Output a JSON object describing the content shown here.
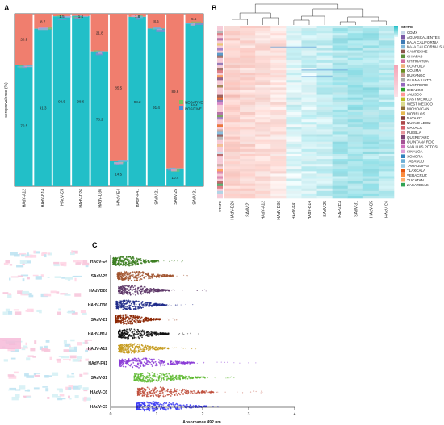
{
  "panels": {
    "a_letter": "A",
    "b_letter": "B",
    "c_letter": "C"
  },
  "colors": {
    "negative": "#f07e6e",
    "positive": "#22bfc8",
    "heat_high": "#f8c8c2",
    "heat_mid": "#ffffff",
    "heat_low": "#9fe3e8"
  },
  "chart_data": [
    {
      "type": "bar",
      "stacked": true,
      "title": "",
      "xlabel": "",
      "ylabel": "seroprevalence (%)",
      "ylim": [
        0,
        100
      ],
      "categories": [
        "HAdV-A12",
        "HAdV-B14",
        "HAdV-C5",
        "HAdV-D26",
        "HAdV-D36",
        "HAdV-E4",
        "HAdV-F41",
        "SAdV-21",
        "SAdV-25",
        "SAdV-31"
      ],
      "legend": {
        "placement": "right",
        "entries": [
          "NEGATIVE",
          "POSITIVE"
        ]
      },
      "series": [
        {
          "name": "NEGATIVE",
          "values": [
            29.5,
            8.7,
            1.5,
            1.4,
            21.8,
            85.5,
            1.8,
            8.6,
            89.6,
            5.6
          ]
        },
        {
          "name": "POSITIVE",
          "values": [
            70.5,
            91.3,
            98.5,
            98.6,
            78.2,
            14.5,
            98.2,
            91.4,
            10.4,
            94.4
          ]
        }
      ],
      "data_labels": [
        {
          "category": "HAdV-A12",
          "labels": [
            "29.5",
            "70.5"
          ]
        },
        {
          "category": "HAdV-B14",
          "labels": [
            "8.7",
            "91.3"
          ]
        },
        {
          "category": "HAdV-C5",
          "labels": [
            "1.5",
            "98.5"
          ]
        },
        {
          "category": "HAdV-D26",
          "labels": [
            "1.4",
            "98.6"
          ]
        },
        {
          "category": "HAdV-D36",
          "labels": [
            "21.8",
            "78.2"
          ]
        },
        {
          "category": "HAdV-E4",
          "labels": [
            "85.5",
            "14.5"
          ]
        },
        {
          "category": "HAdV-F41",
          "labels": [
            "1.8",
            "98.2"
          ]
        },
        {
          "category": "SAdV-21",
          "labels": [
            "8.6",
            "91.4"
          ]
        },
        {
          "category": "SAdV-25",
          "labels": [
            "89.6",
            "10.4"
          ]
        },
        {
          "category": "SAdV-31",
          "labels": [
            "5.6",
            "94.4"
          ]
        }
      ]
    },
    {
      "type": "heatmap",
      "title": "",
      "columns": [
        "HAdV-D26",
        "SAdV-21",
        "HAdV-A12",
        "HAdV-D36",
        "HAdV-F41",
        "HAdV-B14",
        "SAdV-25",
        "HAdV-E4",
        "SAdV-31",
        "HAdV-C5",
        "HAdV-C6"
      ],
      "column_values": [
        0.85,
        0.8,
        0.75,
        0.7,
        0.35,
        0.3,
        0.25,
        0.15,
        0.1,
        0.12,
        0.18
      ],
      "row_annotation_label": "STATE",
      "legend": {
        "title": "STATE",
        "placement": "right",
        "entries": [
          "CDMX",
          "AGUASCALIENTES",
          "BAJA CALIFORNIA",
          "BAJA CALIFORNIA SUR",
          "CAMPECHE",
          "CHIAPAS",
          "CHIHUAHUA",
          "COAHUILA",
          "COLIMA",
          "DURANGO",
          "GUANAJUATO",
          "GUERRERO",
          "HIDALGO",
          "JALISCO",
          "EAST MEXICO",
          "WEST MEXICO",
          "MICHOACAN",
          "MORELOS",
          "NAYARIT",
          "NUEVO LEON",
          "OAXACA",
          "PUEBLA",
          "QUERETARO",
          "QUINTANA ROO",
          "SAN LUIS POTOSI",
          "SINALOA",
          "SONORA",
          "TABASCO",
          "TAMAULIPAS",
          "TLAXCALA",
          "VERACRUZ",
          "YUCATAN",
          "ZACATECAS"
        ],
        "colors": [
          "#c8d8e8",
          "#7b5aa6",
          "#3d7ab5",
          "#7fb6d9",
          "#8c564b",
          "#5b8f3a",
          "#d46fa0",
          "#f0b27a",
          "#6b8e23",
          "#c49c94",
          "#a9a9a9",
          "#9467bd",
          "#2ca02c",
          "#ff9896",
          "#bcbd22",
          "#dbdb8d",
          "#8c6d31",
          "#e7ba52",
          "#843c39",
          "#ad494a",
          "#d6616b",
          "#e7969c",
          "#7b4173",
          "#a55194",
          "#ce6dbd",
          "#de9ed6",
          "#3182bd",
          "#6baed6",
          "#9ecae1",
          "#e6550d",
          "#fd8d3c",
          "#fdae6b",
          "#31a354"
        ]
      }
    },
    {
      "type": "scatter",
      "subtype": "beeswarm",
      "title": "",
      "xlabel": "Absorbance 492 nm",
      "ylabel": "",
      "xlim": [
        0,
        4
      ],
      "xticks": [
        0,
        1,
        2,
        3,
        4
      ],
      "categories": [
        "HAdV-E4",
        "SAdV-25",
        "HAdVD26",
        "HAdV-D36",
        "SAdV-21",
        "HAdV-B14",
        "HAdV-A12",
        "HAdV-F41",
        "SAdV-31",
        "HAdV-C6",
        "HAdV-C5"
      ],
      "series": [
        {
          "name": "HAdV-E4",
          "color": "#3a7d1e",
          "center": 0.3,
          "spread": 0.45,
          "max": 1.6
        },
        {
          "name": "SAdV-25",
          "color": "#a0522d",
          "center": 0.45,
          "spread": 0.55,
          "max": 2.0
        },
        {
          "name": "HAdVD26",
          "color": "#5c3566",
          "center": 0.45,
          "spread": 0.5,
          "max": 2.2
        },
        {
          "name": "HAdV-D36",
          "color": "#1f2a8a",
          "center": 0.4,
          "spread": 0.5,
          "max": 1.8
        },
        {
          "name": "SAdV-21",
          "color": "#8b2500",
          "center": 0.35,
          "spread": 0.45,
          "max": 1.6
        },
        {
          "name": "HAdV-B14",
          "color": "#111111",
          "center": 0.45,
          "spread": 0.5,
          "max": 2.0
        },
        {
          "name": "HAdV-A12",
          "color": "#c59a1b",
          "center": 0.45,
          "spread": 0.5,
          "max": 1.9
        },
        {
          "name": "HAdV-F41",
          "color": "#8a3ad6",
          "center": 0.6,
          "spread": 0.75,
          "max": 3.2
        },
        {
          "name": "SAdV-31",
          "color": "#5cb82e",
          "center": 0.9,
          "spread": 0.7,
          "max": 2.7
        },
        {
          "name": "HAdV-C6",
          "color": "#c0503d",
          "center": 1.0,
          "spread": 0.75,
          "max": 3.3
        },
        {
          "name": "HAdV-C5",
          "color": "#3b3bf5",
          "center": 0.95,
          "spread": 0.7,
          "max": 2.4
        }
      ]
    }
  ]
}
